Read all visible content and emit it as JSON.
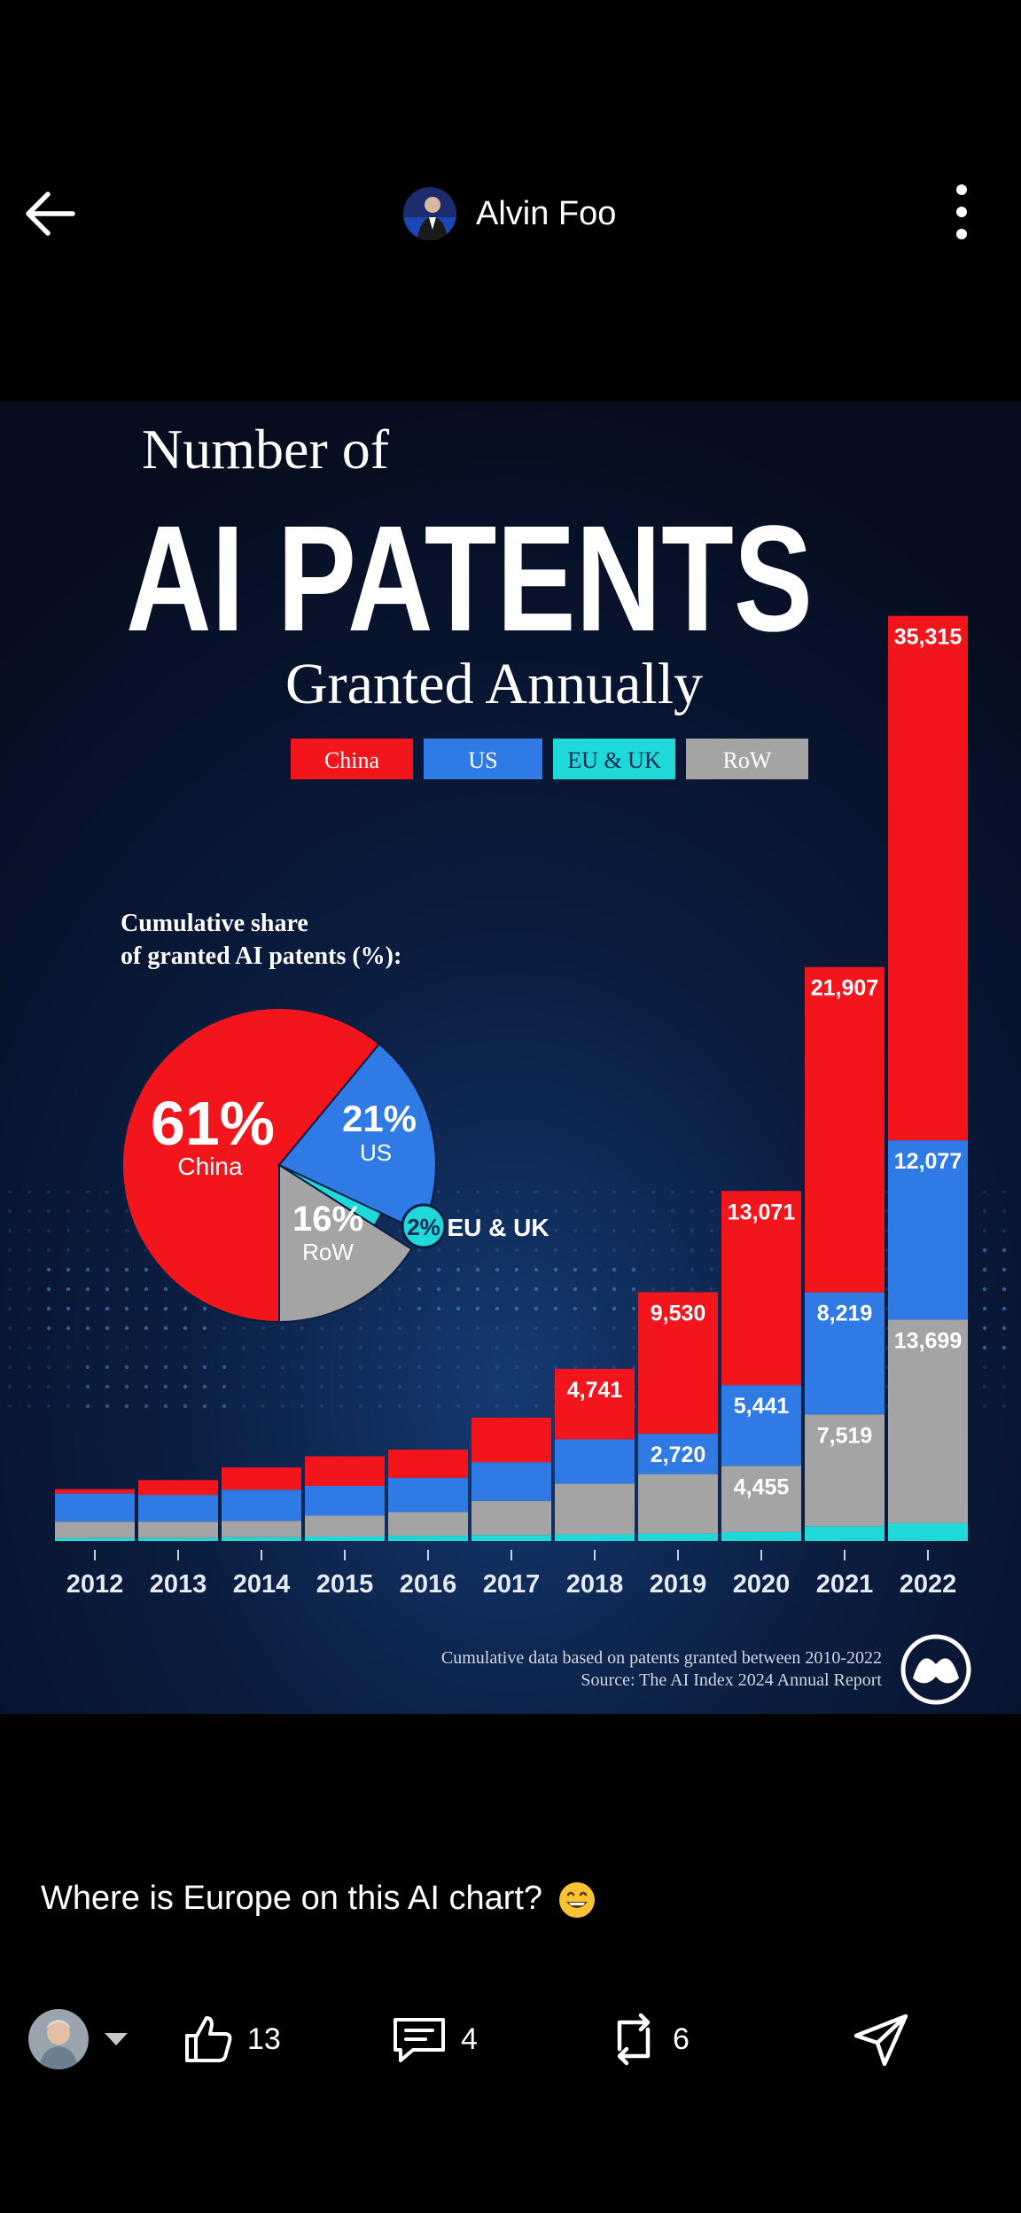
{
  "header": {
    "author_name": "Alvin Foo"
  },
  "infographic": {
    "title_line1": "Number of",
    "title_line2": "AI PATENTS",
    "title_line3": "Granted Annually",
    "legend": [
      "China",
      "US",
      "EU & UK",
      "RoW"
    ],
    "pie_title_line1": "Cumulative share",
    "pie_title_line2": "of granted AI patents (%):",
    "footnote_line1": "Cumulative data based on patents granted between 2010-2022",
    "footnote_line2": "Source: The AI Index 2024 Annual Report"
  },
  "chart_data": [
    {
      "type": "bar",
      "stacked": true,
      "categories": [
        "2012",
        "2013",
        "2014",
        "2015",
        "2016",
        "2017",
        "2018",
        "2019",
        "2020",
        "2021",
        "2022"
      ],
      "series": [
        {
          "name": "China",
          "values": [
            290,
            1000,
            1500,
            2000,
            1900,
            3000,
            4741,
            9530,
            13071,
            21907,
            35315
          ]
        },
        {
          "name": "US",
          "values": [
            1900,
            1800,
            2100,
            2000,
            2300,
            2600,
            3000,
            2720,
            5441,
            8219,
            12077
          ]
        },
        {
          "name": "EU & UK",
          "values": [
            200,
            200,
            250,
            300,
            350,
            400,
            450,
            500,
            600,
            1000,
            1200
          ]
        },
        {
          "name": "RoW",
          "values": [
            1100,
            1100,
            1100,
            1400,
            1600,
            2300,
            3400,
            4000,
            4455,
            7519,
            13699
          ]
        }
      ],
      "data_labels": {
        "2018": [
          "4,741"
        ],
        "2019": [
          "9,530",
          "2,720"
        ],
        "2020": [
          "13,071",
          "5,441",
          "4,455"
        ],
        "2021": [
          "21,907",
          "8,219",
          "7,519"
        ],
        "2022": [
          "35,315",
          "13,699",
          "12,077"
        ]
      },
      "colors": {
        "China": "#f2151c",
        "US": "#2f7ae5",
        "EU & UK": "#1fd8d8",
        "RoW": "#a4a4a4"
      }
    },
    {
      "type": "pie",
      "slices": [
        {
          "name": "China",
          "value": 61,
          "label": "61%"
        },
        {
          "name": "US",
          "value": 21,
          "label": "21%"
        },
        {
          "name": "EU & UK",
          "value": 2,
          "label": "2%"
        },
        {
          "name": "RoW",
          "value": 16,
          "label": "16%"
        }
      ]
    }
  ],
  "post": {
    "caption": "Where is Europe on this AI chart?",
    "caption_emoji": "grinning-face-emoji",
    "likes": "13",
    "comments": "4",
    "reposts": "6"
  },
  "icons": {
    "back": "arrow-left-icon",
    "more": "more-vertical-icon",
    "like": "thumbs-up-icon",
    "comment": "comment-icon",
    "repost": "repost-icon",
    "send": "send-icon",
    "dropdown": "caret-down-icon"
  },
  "colors": {
    "background": "#000000",
    "china": "#f2151c",
    "us": "#2f7ae5",
    "eu_uk": "#1fd8d8",
    "row": "#a4a4a4",
    "infographic_bg": "#0a1630"
  }
}
